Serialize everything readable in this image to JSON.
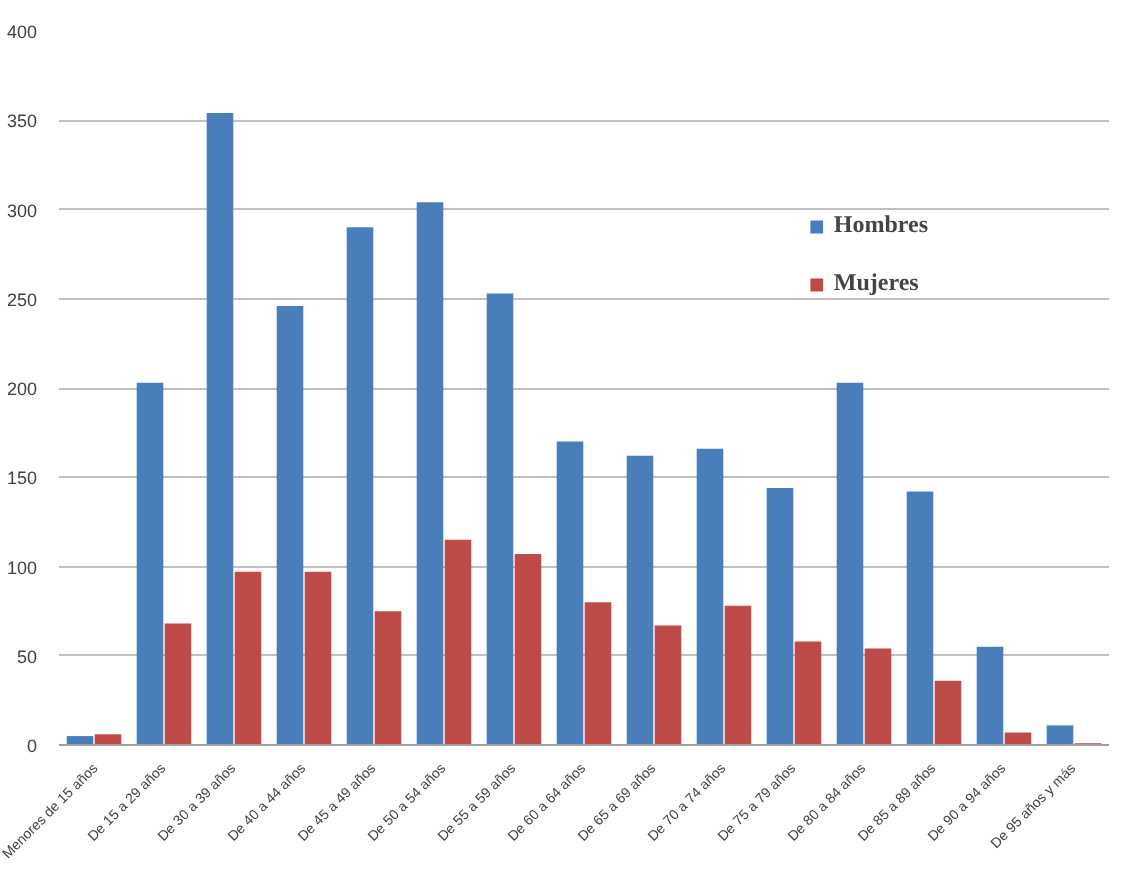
{
  "chart_data": {
    "type": "bar",
    "categories": [
      "Menores de 15 años",
      "De 15 a 29 años",
      "De 30 a 39 años",
      "De 40 a 44 años",
      "De 45 a 49 años",
      "De 50 a 54 años",
      "De 55 a 59 años",
      "De 60 a 64 años",
      "De 65 a 69 años",
      "De 70 a 74 años",
      "De 75 a 79 años",
      "De 80 a 84 años",
      "De 85 a 89 años",
      "De 90 a 94 años",
      "De 95 años y más"
    ],
    "series": [
      {
        "name": "Hombres",
        "color": "#4a7ebb",
        "values": [
          5,
          203,
          354,
          246,
          290,
          304,
          253,
          170,
          162,
          166,
          144,
          203,
          142,
          55,
          11
        ]
      },
      {
        "name": "Mujeres",
        "color": "#be4b48",
        "values": [
          6,
          68,
          97,
          97,
          75,
          115,
          107,
          80,
          67,
          78,
          58,
          54,
          36,
          7,
          1
        ]
      }
    ],
    "ylim": [
      0,
      400
    ],
    "yticks": [
      0,
      50,
      100,
      150,
      200,
      250,
      300,
      350,
      400
    ],
    "grid": "y",
    "legend": "top right"
  }
}
